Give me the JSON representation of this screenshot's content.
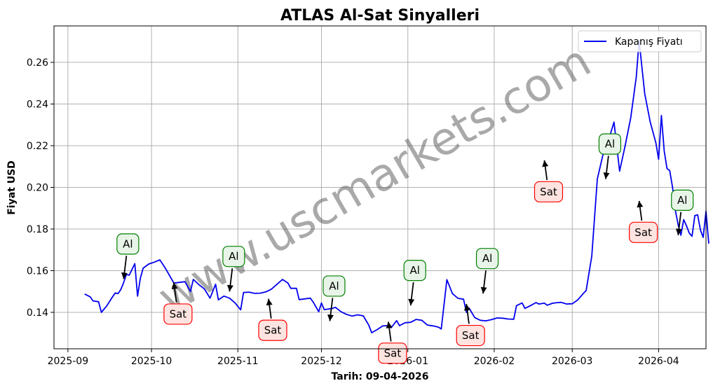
{
  "chart_data": {
    "type": "line",
    "title": "ATLAS Al-Sat Sinyalleri",
    "xlabel": "Tarih: 09-04-2026",
    "ylabel": "Fiyat USD",
    "xlim": [
      "2025-08-27",
      "2026-04-18"
    ],
    "ylim": [
      0.1225,
      0.2775
    ],
    "grid": true,
    "legend_position": "top-right",
    "x_ticks": [
      "2025-09",
      "2025-10",
      "2025-11",
      "2025-12",
      "2026-01",
      "2026-02",
      "2026-03",
      "2026-04"
    ],
    "y_ticks": [
      "0.14",
      "0.16",
      "0.18",
      "0.20",
      "0.22",
      "0.24",
      "0.26"
    ],
    "y_tick_values": [
      0.14,
      0.16,
      0.18,
      0.2,
      0.22,
      0.24,
      0.26
    ],
    "series": [
      {
        "name": "Kapanış Fiyatı",
        "color": "#0000ee",
        "points": [
          [
            "2025-09-07",
            0.1488
          ],
          [
            "2025-09-09",
            0.1474
          ],
          [
            "2025-09-10",
            0.1455
          ],
          [
            "2025-09-12",
            0.1451
          ],
          [
            "2025-09-13",
            0.14
          ],
          [
            "2025-09-15",
            0.1432
          ],
          [
            "2025-09-17",
            0.1474
          ],
          [
            "2025-09-18",
            0.1493
          ],
          [
            "2025-09-19",
            0.149
          ],
          [
            "2025-09-20",
            0.151
          ],
          [
            "2025-09-21",
            0.1543
          ],
          [
            "2025-09-22",
            0.1582
          ],
          [
            "2025-09-23",
            0.1578
          ],
          [
            "2025-09-25",
            0.1634
          ],
          [
            "2025-09-26",
            0.1478
          ],
          [
            "2025-09-27",
            0.1564
          ],
          [
            "2025-09-28",
            0.1612
          ],
          [
            "2025-09-30",
            0.1632
          ],
          [
            "2025-10-02",
            0.1641
          ],
          [
            "2025-10-04",
            0.1652
          ],
          [
            "2025-10-06",
            0.1611
          ],
          [
            "2025-10-09",
            0.1541
          ],
          [
            "2025-10-10",
            0.1542
          ],
          [
            "2025-10-13",
            0.1547
          ],
          [
            "2025-10-15",
            0.15
          ],
          [
            "2025-10-16",
            0.1558
          ],
          [
            "2025-10-18",
            0.1533
          ],
          [
            "2025-10-20",
            0.1512
          ],
          [
            "2025-10-22",
            0.1468
          ],
          [
            "2025-10-24",
            0.1535
          ],
          [
            "2025-10-25",
            0.146
          ],
          [
            "2025-10-27",
            0.1478
          ],
          [
            "2025-10-29",
            0.1468
          ],
          [
            "2025-10-31",
            0.1445
          ],
          [
            "2025-11-02",
            0.1412
          ],
          [
            "2025-11-03",
            0.1495
          ],
          [
            "2025-11-05",
            0.1497
          ],
          [
            "2025-11-07",
            0.1491
          ],
          [
            "2025-11-09",
            0.1492
          ],
          [
            "2025-11-11",
            0.1498
          ],
          [
            "2025-11-13",
            0.1511
          ],
          [
            "2025-11-15",
            0.1534
          ],
          [
            "2025-11-17",
            0.1558
          ],
          [
            "2025-11-19",
            0.154
          ],
          [
            "2025-11-20",
            0.1515
          ],
          [
            "2025-11-22",
            0.1515
          ],
          [
            "2025-11-23",
            0.1461
          ],
          [
            "2025-11-27",
            0.1468
          ],
          [
            "2025-11-28",
            0.145
          ],
          [
            "2025-11-30",
            0.1403
          ],
          [
            "2025-12-01",
            0.1445
          ],
          [
            "2025-12-02",
            0.1413
          ],
          [
            "2025-12-05",
            0.1419
          ],
          [
            "2025-12-06",
            0.1424
          ],
          [
            "2025-12-08",
            0.1403
          ],
          [
            "2025-12-10",
            0.139
          ],
          [
            "2025-12-12",
            0.1382
          ],
          [
            "2025-12-14",
            0.1388
          ],
          [
            "2025-12-16",
            0.1383
          ],
          [
            "2025-12-18",
            0.1338
          ],
          [
            "2025-12-19",
            0.1302
          ],
          [
            "2025-12-21",
            0.1317
          ],
          [
            "2025-12-23",
            0.1335
          ],
          [
            "2025-12-25",
            0.1336
          ],
          [
            "2025-12-26",
            0.1326
          ],
          [
            "2025-12-28",
            0.136
          ],
          [
            "2025-12-29",
            0.1336
          ],
          [
            "2025-12-31",
            0.135
          ],
          [
            "2026-01-02",
            0.1352
          ],
          [
            "2026-01-04",
            0.1366
          ],
          [
            "2026-01-06",
            0.1362
          ],
          [
            "2026-01-08",
            0.1339
          ],
          [
            "2026-01-10",
            0.1335
          ],
          [
            "2026-01-12",
            0.1329
          ],
          [
            "2026-01-13",
            0.132
          ],
          [
            "2026-01-15",
            0.1557
          ],
          [
            "2026-01-17",
            0.149
          ],
          [
            "2026-01-19",
            0.1467
          ],
          [
            "2026-01-21",
            0.1463
          ],
          [
            "2026-01-22",
            0.14
          ],
          [
            "2026-01-23",
            0.142
          ],
          [
            "2026-01-25",
            0.1375
          ],
          [
            "2026-01-27",
            0.1362
          ],
          [
            "2026-01-29",
            0.1359
          ],
          [
            "2026-01-31",
            0.1365
          ],
          [
            "2026-02-02",
            0.1373
          ],
          [
            "2026-02-04",
            0.1372
          ],
          [
            "2026-02-06",
            0.1368
          ],
          [
            "2026-02-08",
            0.1367
          ],
          [
            "2026-02-09",
            0.1432
          ],
          [
            "2026-02-11",
            0.1445
          ],
          [
            "2026-02-12",
            0.1419
          ],
          [
            "2026-02-14",
            0.1432
          ],
          [
            "2026-02-16",
            0.1447
          ],
          [
            "2026-02-17",
            0.144
          ],
          [
            "2026-02-19",
            0.1444
          ],
          [
            "2026-02-20",
            0.1434
          ],
          [
            "2026-02-22",
            0.1444
          ],
          [
            "2026-02-24",
            0.1447
          ],
          [
            "2026-02-25",
            0.1448
          ],
          [
            "2026-02-27",
            0.144
          ],
          [
            "2026-02-28",
            0.1441
          ],
          [
            "2026-03-01",
            0.1441
          ],
          [
            "2026-03-03",
            0.146
          ],
          [
            "2026-03-05",
            0.1491
          ],
          [
            "2026-03-06",
            0.1505
          ],
          [
            "2026-03-08",
            0.167
          ],
          [
            "2026-03-10",
            0.204
          ],
          [
            "2026-03-12",
            0.2155
          ],
          [
            "2026-03-14",
            0.2226
          ],
          [
            "2026-03-16",
            0.2313
          ],
          [
            "2026-03-18",
            0.2078
          ],
          [
            "2026-03-20",
            0.22
          ],
          [
            "2026-03-22",
            0.2335
          ],
          [
            "2026-03-24",
            0.2531
          ],
          [
            "2026-03-25",
            0.2705
          ],
          [
            "2026-03-27",
            0.245
          ],
          [
            "2026-03-29",
            0.2313
          ],
          [
            "2026-03-31",
            0.2214
          ],
          [
            "2026-04-01",
            0.2135
          ],
          [
            "2026-04-02",
            0.2345
          ],
          [
            "2026-04-03",
            0.2175
          ],
          [
            "2026-04-04",
            0.209
          ],
          [
            "2026-04-05",
            0.208
          ],
          [
            "2026-04-06",
            0.2
          ],
          [
            "2026-04-07",
            0.189
          ],
          [
            "2026-04-08",
            0.182
          ],
          [
            "2026-04-09",
            0.177
          ],
          [
            "2026-04-10",
            0.1845
          ],
          [
            "2026-04-11",
            0.1815
          ],
          [
            "2026-04-12",
            0.178
          ],
          [
            "2026-04-13",
            0.1765
          ],
          [
            "2026-04-14",
            0.1865
          ],
          [
            "2026-04-15",
            0.1868
          ],
          [
            "2026-04-16",
            0.1795
          ],
          [
            "2026-04-17",
            0.176
          ],
          [
            "2026-04-18",
            0.1885
          ],
          [
            "2026-04-19",
            0.173
          ]
        ]
      }
    ],
    "annotations": [
      {
        "label": "Al",
        "type": "buy",
        "date": "2025-09-21",
        "price": 0.156
      },
      {
        "label": "Sat",
        "type": "sell",
        "date": "2025-10-09",
        "price": 0.1543
      },
      {
        "label": "Al",
        "type": "buy",
        "date": "2025-10-29",
        "price": 0.15
      },
      {
        "label": "Sat",
        "type": "sell",
        "date": "2025-11-12",
        "price": 0.1465
      },
      {
        "label": "Al",
        "type": "buy",
        "date": "2025-12-04",
        "price": 0.1358
      },
      {
        "label": "Sat",
        "type": "sell",
        "date": "2025-12-25",
        "price": 0.1355
      },
      {
        "label": "Al",
        "type": "buy",
        "date": "2026-01-02",
        "price": 0.1433
      },
      {
        "label": "Sat",
        "type": "sell",
        "date": "2026-01-22",
        "price": 0.144
      },
      {
        "label": "Al",
        "type": "buy",
        "date": "2026-01-28",
        "price": 0.149
      },
      {
        "label": "Sat",
        "type": "sell",
        "date": "2026-02-19",
        "price": 0.213
      },
      {
        "label": "Al",
        "type": "buy",
        "date": "2026-03-13",
        "price": 0.204
      },
      {
        "label": "Sat",
        "type": "sell",
        "date": "2026-03-25",
        "price": 0.1935
      },
      {
        "label": "Al",
        "type": "buy",
        "date": "2026-04-08",
        "price": 0.177
      }
    ]
  },
  "watermark": "www.uscmarkets.com",
  "colors": {
    "line": "#0000ee",
    "buy_edge": "#008000",
    "buy_fill": "#e8f4e8",
    "sell_edge": "#ff0000",
    "sell_fill": "#fde4e0",
    "grid": "#b0b0b0"
  }
}
